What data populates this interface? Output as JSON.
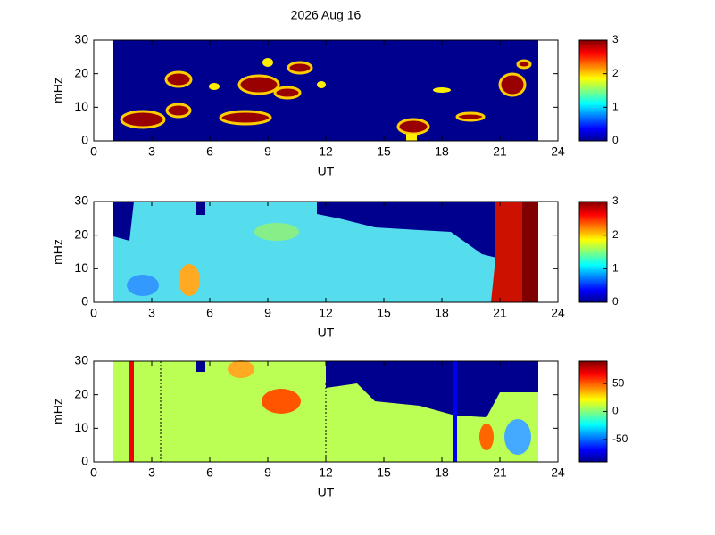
{
  "chart_data": [
    {
      "type": "heatmap",
      "title": "2026 Aug 16",
      "xlabel": "UT",
      "ylabel": "mHz",
      "xlim": [
        0,
        24
      ],
      "xticks": [
        0,
        3,
        6,
        9,
        12,
        15,
        18,
        21,
        24
      ],
      "ylim": [
        0,
        30
      ],
      "yticks": [
        0,
        10,
        20,
        30
      ],
      "colorbar": {
        "lim": [
          0,
          3
        ],
        "ticks": [
          0,
          1,
          2,
          3
        ]
      }
    },
    {
      "type": "heatmap",
      "xlabel": "UT",
      "ylabel": "mHz",
      "xlim": [
        0,
        24
      ],
      "xticks": [
        0,
        3,
        6,
        9,
        12,
        15,
        18,
        21,
        24
      ],
      "ylim": [
        0,
        30
      ],
      "yticks": [
        0,
        10,
        20,
        30
      ],
      "colorbar": {
        "lim": [
          0,
          3
        ],
        "ticks": [
          0,
          1,
          2,
          3
        ]
      }
    },
    {
      "type": "heatmap",
      "xlabel": "UT",
      "ylabel": "mHz",
      "xlim": [
        0,
        24
      ],
      "xticks": [
        0,
        3,
        6,
        9,
        12,
        15,
        18,
        21,
        24
      ],
      "ylim": [
        0,
        30
      ],
      "yticks": [
        0,
        10,
        20,
        30
      ],
      "colorbar": {
        "lim": [
          -90,
          90
        ],
        "ticks": [
          -50,
          0,
          50
        ]
      }
    }
  ]
}
